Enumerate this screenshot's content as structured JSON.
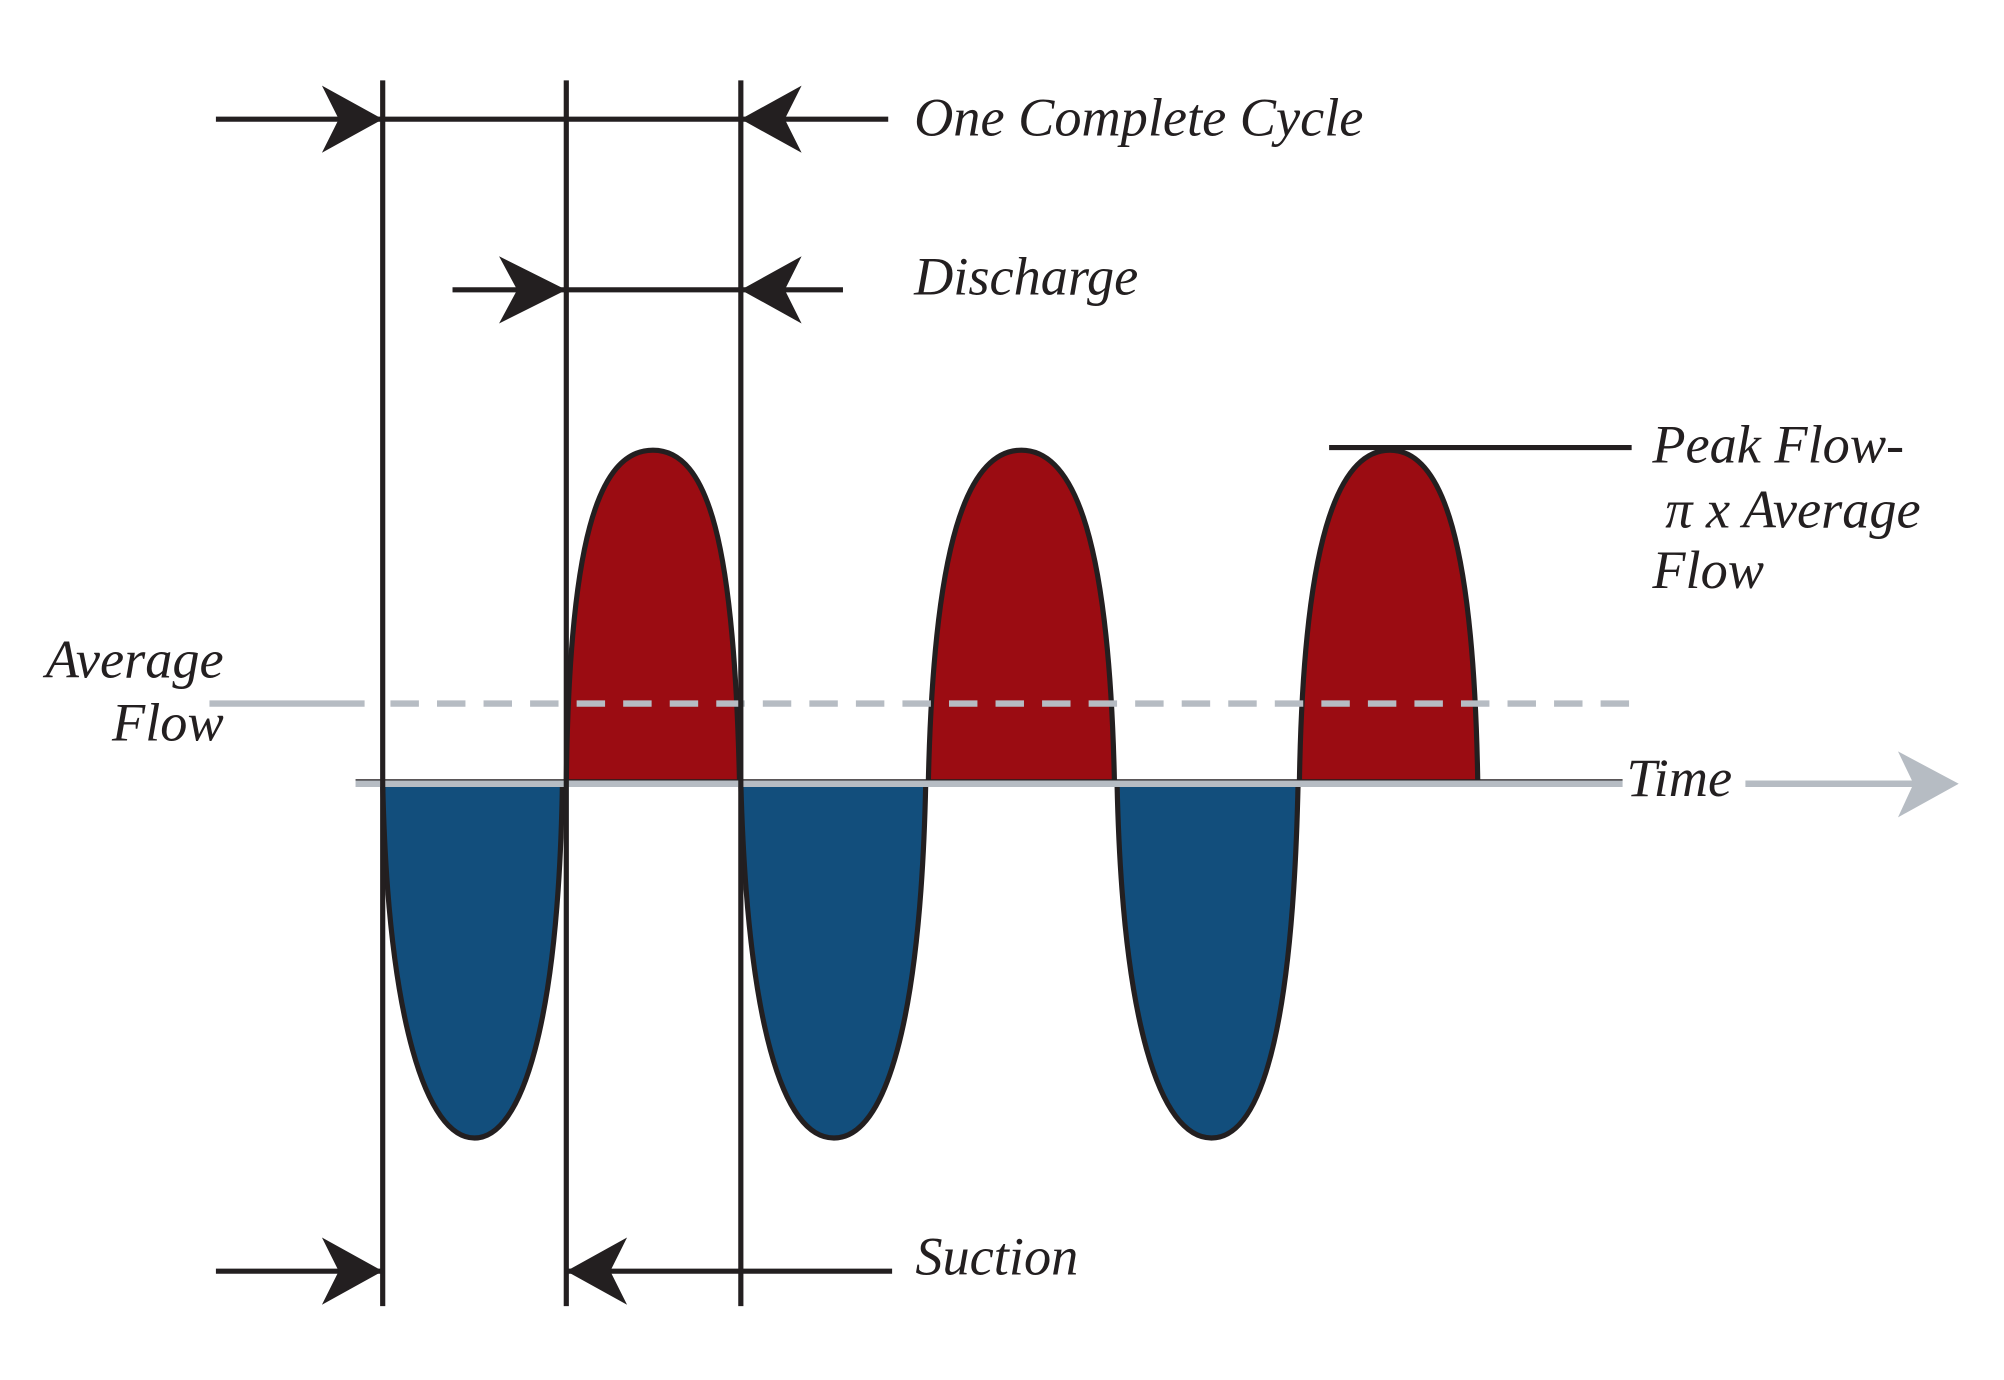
{
  "labels": {
    "cycle": "One Complete Cycle",
    "discharge": "Discharge",
    "suction": "Suction",
    "peak_flow": [
      "Peak Flow-",
      "π x Average",
      "Flow"
    ],
    "average_flow": [
      "Average",
      "Flow"
    ],
    "time": "Time"
  }
}
